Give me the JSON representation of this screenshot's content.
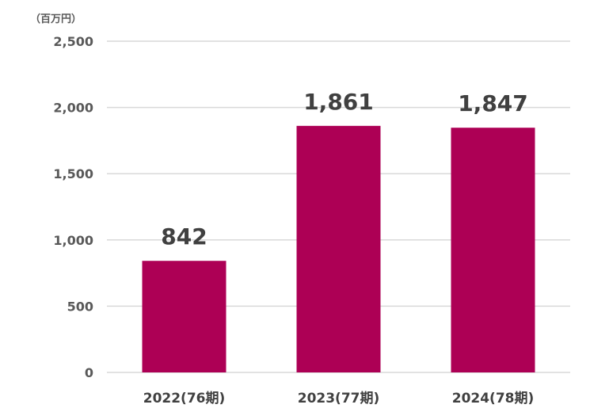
{
  "chart_data": {
    "type": "bar",
    "unit_label": "（百万円）",
    "categories": [
      "2022(76期)",
      "2023(77期)",
      "2024(78期)"
    ],
    "values": [
      842,
      1861,
      1847
    ],
    "data_labels": [
      "842",
      "1,861",
      "1,847"
    ],
    "ylim": [
      0,
      2500
    ],
    "yticks": [
      0,
      500,
      1000,
      1500,
      2000,
      2500
    ],
    "ytick_labels": [
      "0",
      "500",
      "1,000",
      "1,500",
      "2,000",
      "2,500"
    ],
    "grid": true,
    "legend": "none",
    "bar_color": "#AD0055",
    "grid_color": "#D9D9D9"
  }
}
